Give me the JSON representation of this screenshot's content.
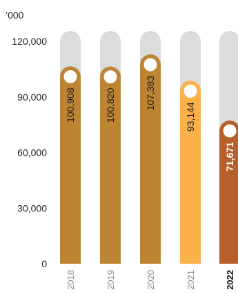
{
  "chart_data": {
    "type": "bar",
    "unit_label": "’000",
    "categories": [
      "2018",
      "2019",
      "2020",
      "2021",
      "2022"
    ],
    "values": [
      100908,
      100820,
      107383,
      93144,
      71671
    ],
    "value_labels": [
      "100,908",
      "100,820",
      "107,383",
      "93,144",
      "71,671"
    ],
    "highlight_index": 4,
    "ylim": [
      0,
      120000
    ],
    "yticks": [
      0,
      30000,
      60000,
      90000,
      120000
    ],
    "ytick_labels": [
      "0",
      "30,000",
      "60,000",
      "90,000",
      "120,000"
    ],
    "grid": false,
    "colors": {
      "track": "#dcdcdc",
      "bars": [
        "#bd8433",
        "#bd8433",
        "#bd8433",
        "#fbb04a",
        "#b8602d"
      ],
      "marker": "#ffffff",
      "label_default": "#1a1a1a",
      "label_highlight": "#ffffff",
      "xtick_default": "#8a8a8a",
      "xtick_highlight": "#111111"
    }
  }
}
